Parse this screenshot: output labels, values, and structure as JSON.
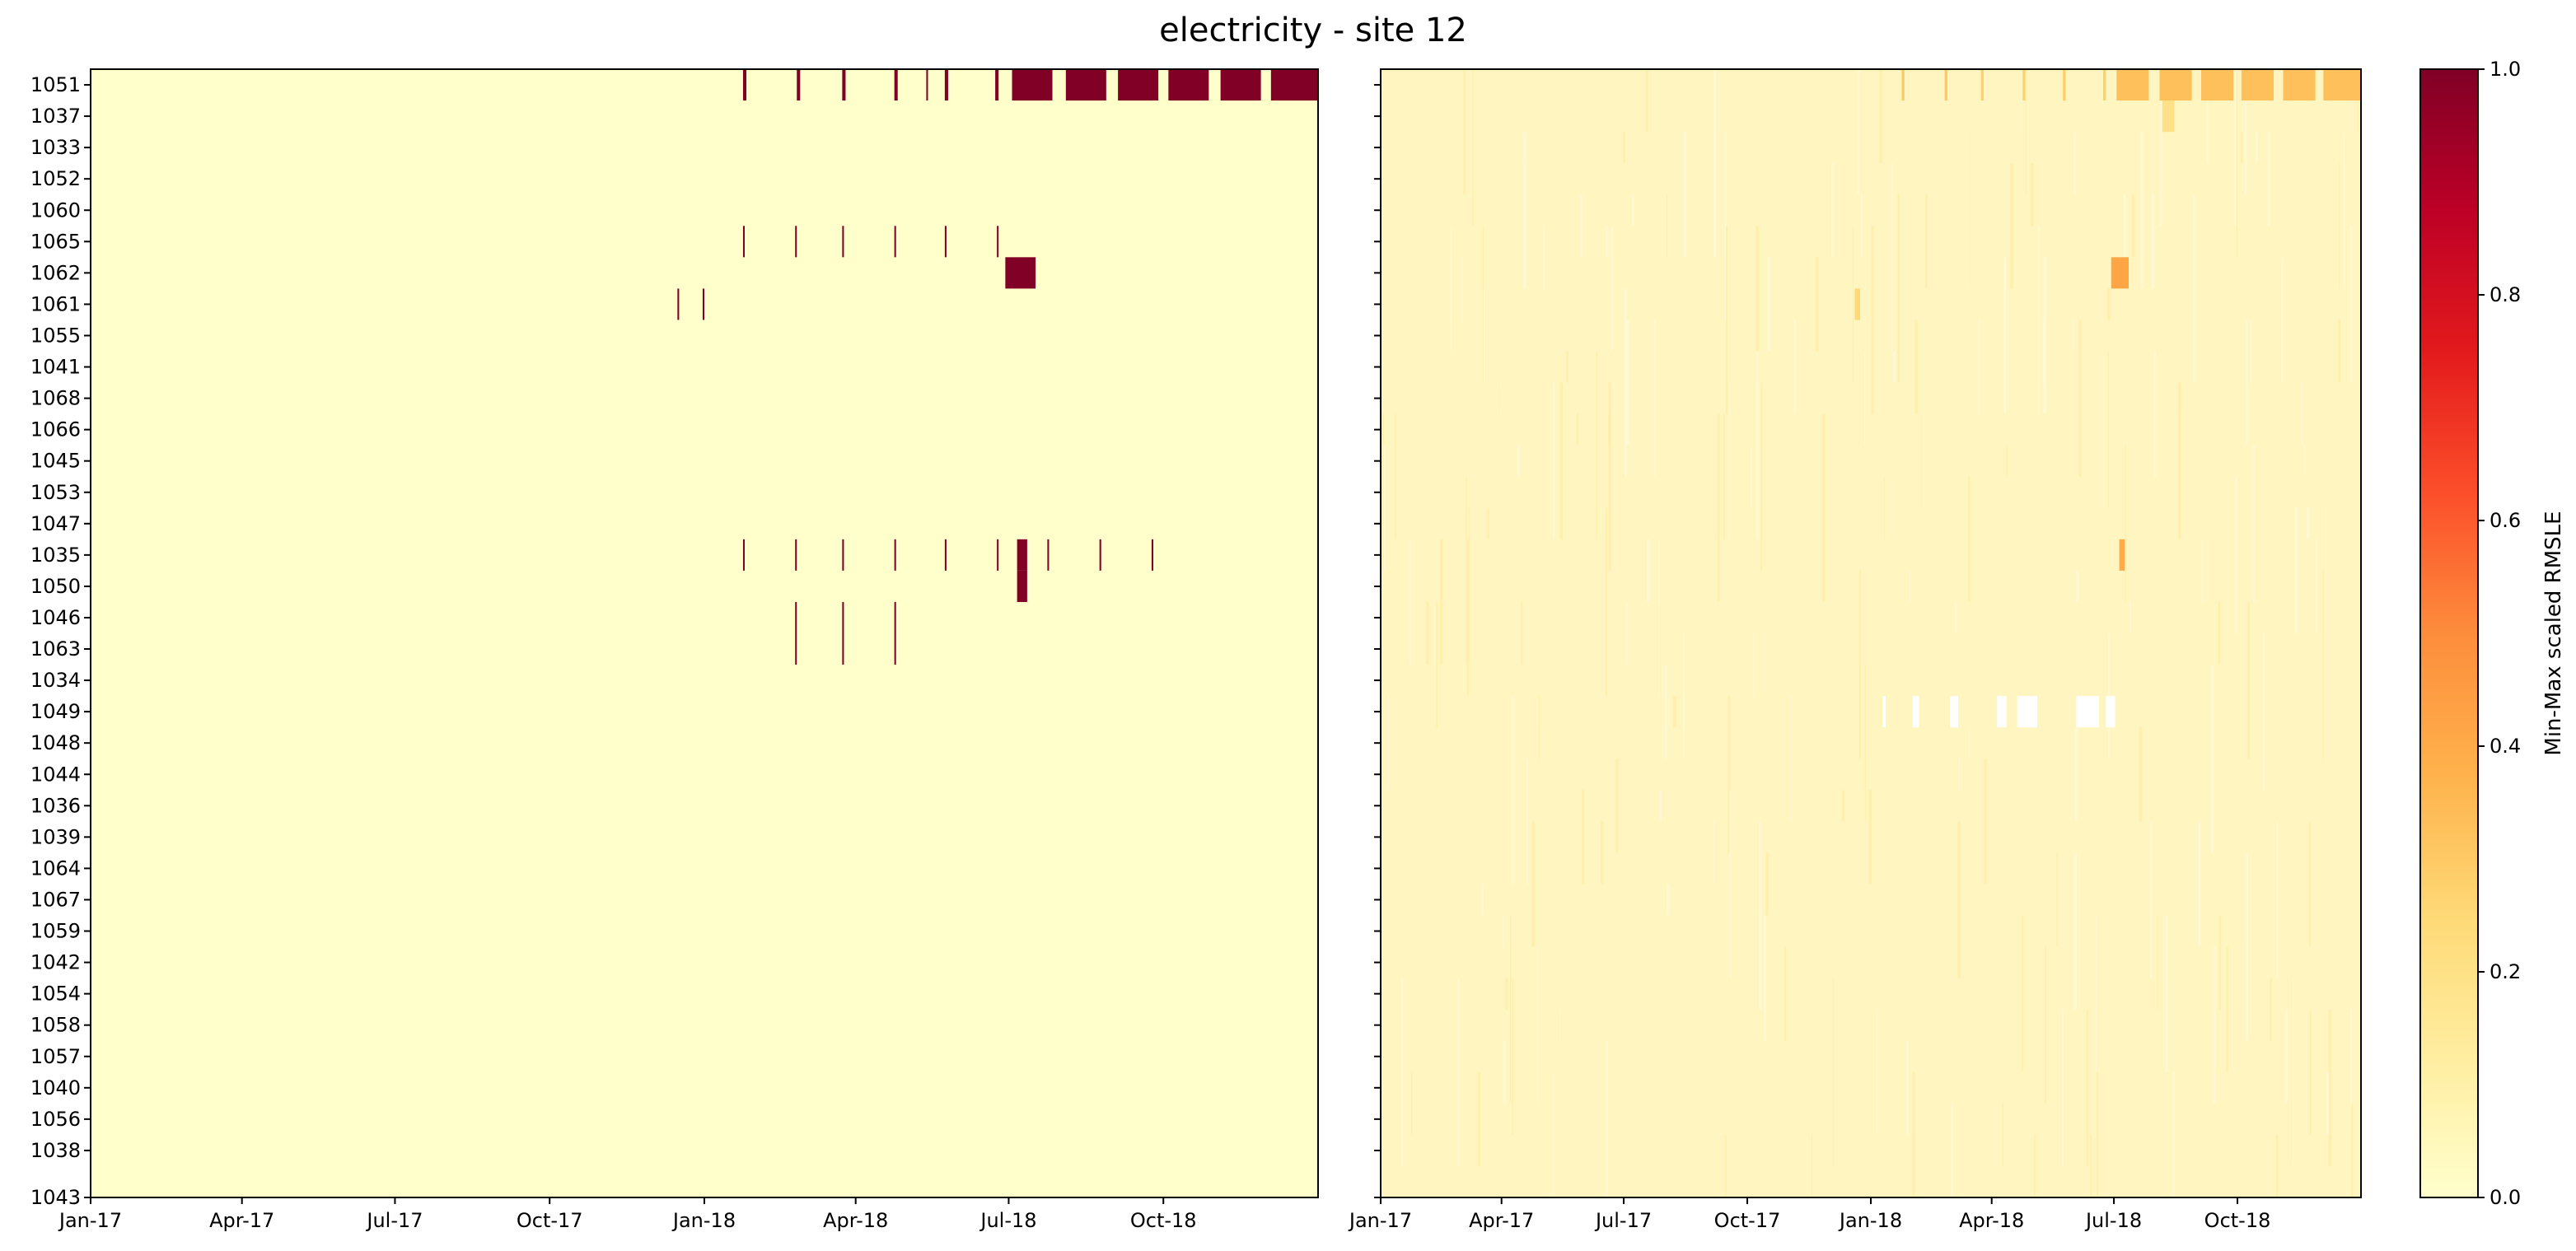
{
  "figure": {
    "title": "electricity - site 12"
  },
  "chart_data": [
    {
      "type": "heatmap",
      "panel": "left",
      "title": "",
      "xlabel": "",
      "ylabel": "",
      "x_range": [
        "2017-01-01",
        "2019-01-01"
      ],
      "x_ticks": [
        "Jan-17",
        "Apr-17",
        "Jul-17",
        "Oct-17",
        "Jan-18",
        "Apr-18",
        "Jul-18",
        "Oct-18"
      ],
      "x_tick_dates": [
        "2017-01-01",
        "2017-04-01",
        "2017-07-01",
        "2017-10-01",
        "2018-01-01",
        "2018-04-01",
        "2018-07-01",
        "2018-10-01"
      ],
      "y_first_tick": "1043",
      "rows": [
        "1051",
        "1037",
        "1033",
        "1052",
        "1060",
        "1065",
        "1062",
        "1061",
        "1055",
        "1041",
        "1068",
        "1066",
        "1045",
        "1053",
        "1047",
        "1035",
        "1050",
        "1046",
        "1063",
        "1034",
        "1049",
        "1048",
        "1044",
        "1036",
        "1039",
        "1064",
        "1067",
        "1059",
        "1042",
        "1054",
        "1058",
        "1057",
        "1040",
        "1056",
        "1038"
      ],
      "background_value": 0.0,
      "cells": [
        {
          "row": "1051",
          "start": "2018-01-24",
          "end": "2018-01-26",
          "value": 1.0
        },
        {
          "row": "1051",
          "start": "2018-02-25",
          "end": "2018-02-27",
          "value": 1.0
        },
        {
          "row": "1051",
          "start": "2018-03-24",
          "end": "2018-03-26",
          "value": 1.0
        },
        {
          "row": "1051",
          "start": "2018-04-24",
          "end": "2018-04-26",
          "value": 1.0
        },
        {
          "row": "1051",
          "start": "2018-05-13",
          "end": "2018-05-14",
          "value": 1.0
        },
        {
          "row": "1051",
          "start": "2018-05-24",
          "end": "2018-05-26",
          "value": 1.0
        },
        {
          "row": "1051",
          "start": "2018-06-23",
          "end": "2018-06-25",
          "value": 1.0
        },
        {
          "row": "1051",
          "start": "2018-07-03",
          "end": "2018-07-27",
          "value": 1.0
        },
        {
          "row": "1051",
          "start": "2018-08-04",
          "end": "2018-08-28",
          "value": 1.0
        },
        {
          "row": "1051",
          "start": "2018-09-04",
          "end": "2018-09-28",
          "value": 1.0
        },
        {
          "row": "1051",
          "start": "2018-10-04",
          "end": "2018-10-28",
          "value": 1.0
        },
        {
          "row": "1051",
          "start": "2018-11-04",
          "end": "2018-11-28",
          "value": 1.0
        },
        {
          "row": "1051",
          "start": "2018-12-04",
          "end": "2019-01-01",
          "value": 1.0
        },
        {
          "row": "1065",
          "start": "2018-01-24",
          "end": "2018-01-25",
          "value": 1.0
        },
        {
          "row": "1065",
          "start": "2018-02-24",
          "end": "2018-02-25",
          "value": 1.0
        },
        {
          "row": "1065",
          "start": "2018-03-24",
          "end": "2018-03-25",
          "value": 1.0
        },
        {
          "row": "1065",
          "start": "2018-04-24",
          "end": "2018-04-25",
          "value": 1.0
        },
        {
          "row": "1065",
          "start": "2018-05-24",
          "end": "2018-05-25",
          "value": 1.0
        },
        {
          "row": "1065",
          "start": "2018-06-24",
          "end": "2018-06-25",
          "value": 1.0
        },
        {
          "row": "1062",
          "start": "2018-06-29",
          "end": "2018-07-17",
          "value": 1.0
        },
        {
          "row": "1061",
          "start": "2017-12-16",
          "end": "2017-12-17",
          "value": 1.0
        },
        {
          "row": "1061",
          "start": "2017-12-31",
          "end": "2018-01-01",
          "value": 1.0
        },
        {
          "row": "1035",
          "start": "2018-01-24",
          "end": "2018-01-25",
          "value": 1.0
        },
        {
          "row": "1035",
          "start": "2018-02-24",
          "end": "2018-02-25",
          "value": 1.0
        },
        {
          "row": "1035",
          "start": "2018-03-24",
          "end": "2018-03-25",
          "value": 1.0
        },
        {
          "row": "1035",
          "start": "2018-04-24",
          "end": "2018-04-25",
          "value": 1.0
        },
        {
          "row": "1035",
          "start": "2018-05-24",
          "end": "2018-05-25",
          "value": 1.0
        },
        {
          "row": "1035",
          "start": "2018-06-24",
          "end": "2018-06-25",
          "value": 1.0
        },
        {
          "row": "1035",
          "start": "2018-07-06",
          "end": "2018-07-12",
          "value": 1.0
        },
        {
          "row": "1035",
          "start": "2018-07-24",
          "end": "2018-07-25",
          "value": 1.0
        },
        {
          "row": "1035",
          "start": "2018-08-24",
          "end": "2018-08-25",
          "value": 1.0
        },
        {
          "row": "1035",
          "start": "2018-09-24",
          "end": "2018-09-25",
          "value": 1.0
        },
        {
          "row": "1050",
          "start": "2018-07-06",
          "end": "2018-07-12",
          "value": 1.0
        },
        {
          "row": "1046",
          "start": "2018-02-24",
          "end": "2018-02-25",
          "value": 1.0
        },
        {
          "row": "1046",
          "start": "2018-03-24",
          "end": "2018-03-25",
          "value": 1.0
        },
        {
          "row": "1046",
          "start": "2018-04-24",
          "end": "2018-04-25",
          "value": 1.0
        },
        {
          "row": "1063",
          "start": "2018-02-24",
          "end": "2018-02-25",
          "value": 1.0
        },
        {
          "row": "1063",
          "start": "2018-03-24",
          "end": "2018-03-25",
          "value": 1.0
        },
        {
          "row": "1063",
          "start": "2018-04-24",
          "end": "2018-04-25",
          "value": 1.0
        }
      ]
    },
    {
      "type": "heatmap",
      "panel": "right",
      "title": "",
      "xlabel": "",
      "ylabel": "",
      "x_range": [
        "2017-01-01",
        "2019-01-01"
      ],
      "x_ticks": [
        "Jan-17",
        "Apr-17",
        "Jul-17",
        "Oct-17",
        "Jan-18",
        "Apr-18",
        "Jul-18",
        "Oct-18"
      ],
      "x_tick_dates": [
        "2017-01-01",
        "2017-04-01",
        "2017-07-01",
        "2017-10-01",
        "2018-01-01",
        "2018-04-01",
        "2018-07-01",
        "2018-10-01"
      ],
      "rows_shared_with": "left",
      "background_value": 0.04,
      "cells": [
        {
          "row": "1051",
          "start": "2018-01-24",
          "end": "2018-01-26",
          "value": 0.3
        },
        {
          "row": "1051",
          "start": "2018-02-25",
          "end": "2018-02-27",
          "value": 0.3
        },
        {
          "row": "1051",
          "start": "2018-03-24",
          "end": "2018-03-26",
          "value": 0.28
        },
        {
          "row": "1051",
          "start": "2018-04-24",
          "end": "2018-04-26",
          "value": 0.28
        },
        {
          "row": "1051",
          "start": "2018-05-24",
          "end": "2018-05-26",
          "value": 0.28
        },
        {
          "row": "1051",
          "start": "2018-06-23",
          "end": "2018-06-25",
          "value": 0.28
        },
        {
          "row": "1051",
          "start": "2018-07-03",
          "end": "2018-07-27",
          "value": 0.33
        },
        {
          "row": "1051",
          "start": "2018-08-04",
          "end": "2018-08-28",
          "value": 0.33
        },
        {
          "row": "1051",
          "start": "2018-09-04",
          "end": "2018-09-28",
          "value": 0.33
        },
        {
          "row": "1051",
          "start": "2018-10-04",
          "end": "2018-10-28",
          "value": 0.33
        },
        {
          "row": "1051",
          "start": "2018-11-04",
          "end": "2018-11-28",
          "value": 0.33
        },
        {
          "row": "1051",
          "start": "2018-12-04",
          "end": "2019-01-01",
          "value": 0.33
        },
        {
          "row": "1037",
          "start": "2018-08-06",
          "end": "2018-08-15",
          "value": 0.2
        },
        {
          "row": "1062",
          "start": "2018-06-29",
          "end": "2018-07-12",
          "value": 0.42
        },
        {
          "row": "1061",
          "start": "2017-12-20",
          "end": "2017-12-24",
          "value": 0.25
        },
        {
          "row": "1035",
          "start": "2018-07-05",
          "end": "2018-07-09",
          "value": 0.4
        },
        {
          "row": "1049",
          "start": "2018-01-10",
          "end": "2018-01-12",
          "value": null
        },
        {
          "row": "1049",
          "start": "2018-02-01",
          "end": "2018-02-06",
          "value": null
        },
        {
          "row": "1049",
          "start": "2018-03-01",
          "end": "2018-03-07",
          "value": null
        },
        {
          "row": "1049",
          "start": "2018-04-05",
          "end": "2018-04-12",
          "value": null
        },
        {
          "row": "1049",
          "start": "2018-04-20",
          "end": "2018-05-05",
          "value": null
        },
        {
          "row": "1049",
          "start": "2018-06-03",
          "end": "2018-06-20",
          "value": null
        },
        {
          "row": "1049",
          "start": "2018-06-25",
          "end": "2018-07-02",
          "value": null
        }
      ]
    },
    {
      "type": "colorbar",
      "label": "Min-Max scaled RMSLE",
      "range": [
        0.0,
        1.0
      ],
      "ticks": [
        "0.0",
        "0.2",
        "0.4",
        "0.6",
        "0.8",
        "1.0"
      ],
      "colormap": "YlOrRd",
      "color_stops": [
        "#ffffcc",
        "#ffeda0",
        "#fed976",
        "#feb24c",
        "#fd8d3c",
        "#fc4e2a",
        "#e31a1c",
        "#bd0026",
        "#800026"
      ]
    }
  ]
}
